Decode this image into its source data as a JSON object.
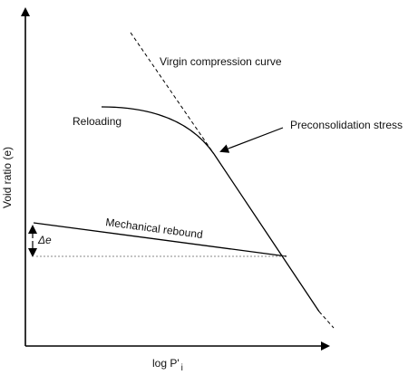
{
  "diagram": {
    "axes": {
      "y_label": "Void ratio (e)",
      "x_label_main": "log P'",
      "x_label_sub": "i"
    },
    "annotations": {
      "virgin_compression": "Virgin compression curve",
      "preconsolidation": "Preconsolidation stress",
      "reloading": "Reloading",
      "mechanical_rebound": "Mechanical rebound",
      "delta_e": "Δe"
    },
    "colors": {
      "line": "#000000",
      "dotted_reference": "#888888"
    }
  }
}
